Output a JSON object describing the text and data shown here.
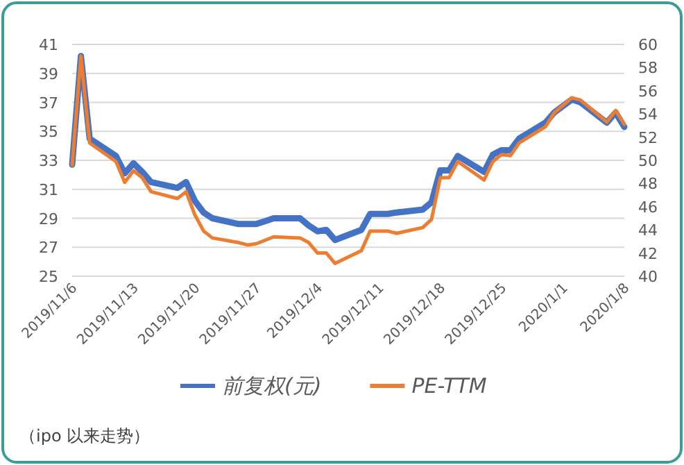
{
  "chart_data": {
    "type": "line",
    "x": [
      "2019-11-06",
      "2019-11-07",
      "2019-11-08",
      "2019-11-11",
      "2019-11-12",
      "2019-11-13",
      "2019-11-14",
      "2019-11-15",
      "2019-11-18",
      "2019-11-19",
      "2019-11-20",
      "2019-11-21",
      "2019-11-22",
      "2019-11-25",
      "2019-11-26",
      "2019-11-27",
      "2019-11-28",
      "2019-11-29",
      "2019-12-02",
      "2019-12-03",
      "2019-12-04",
      "2019-12-05",
      "2019-12-06",
      "2019-12-09",
      "2019-12-10",
      "2019-12-11",
      "2019-12-12",
      "2019-12-13",
      "2019-12-16",
      "2019-12-17",
      "2019-12-18",
      "2019-12-19",
      "2019-12-20",
      "2019-12-23",
      "2019-12-24",
      "2019-12-25",
      "2019-12-26",
      "2019-12-27",
      "2019-12-30",
      "2019-12-31",
      "2020-01-02",
      "2020-01-03",
      "2020-01-06",
      "2020-01-07",
      "2020-01-08"
    ],
    "series": [
      {
        "name": "前复权(元)",
        "color": "#4472c4",
        "values": [
          32.7,
          40.2,
          34.5,
          33.3,
          32.1,
          32.8,
          32.2,
          31.5,
          31.1,
          31.5,
          30.2,
          29.4,
          29.0,
          28.6,
          28.6,
          28.6,
          28.8,
          29.0,
          29.0,
          28.5,
          28.1,
          28.2,
          27.5,
          28.2,
          29.3,
          29.3,
          29.3,
          29.4,
          29.6,
          30.1,
          32.3,
          32.3,
          33.3,
          32.2,
          33.4,
          33.7,
          33.7,
          34.5,
          35.6,
          36.3,
          37.2,
          37.0,
          35.6,
          36.3,
          35.3
        ]
      },
      {
        "name": "PE-TTM",
        "color": "#ed7d31",
        "axis": "y2",
        "values": [
          49.6,
          59.0,
          51.5,
          49.9,
          48.1,
          49.1,
          48.5,
          47.3,
          46.7,
          47.3,
          45.3,
          43.9,
          43.3,
          42.9,
          42.7,
          42.8,
          43.1,
          43.4,
          43.3,
          42.9,
          42.0,
          42.0,
          41.1,
          42.2,
          43.9,
          43.9,
          43.9,
          43.7,
          44.2,
          44.9,
          48.5,
          48.5,
          49.9,
          48.3,
          49.9,
          50.5,
          50.4,
          51.5,
          52.9,
          54.1,
          55.4,
          55.2,
          53.3,
          54.3,
          53.1
        ]
      }
    ],
    "xlim": [
      "2019-11-06",
      "2020-01-08"
    ],
    "xticks": [
      {
        "value": "2019-11-06",
        "label": "2019/11/6"
      },
      {
        "value": "2019-11-13",
        "label": "2019/11/13"
      },
      {
        "value": "2019-11-20",
        "label": "2019/11/20"
      },
      {
        "value": "2019-11-27",
        "label": "2019/11/27"
      },
      {
        "value": "2019-12-04",
        "label": "2019/12/4"
      },
      {
        "value": "2019-12-11",
        "label": "2019/12/11"
      },
      {
        "value": "2019-12-18",
        "label": "2019/12/18"
      },
      {
        "value": "2019-12-25",
        "label": "2019/12/25"
      },
      {
        "value": "2020-01-01",
        "label": "2020/1/1"
      },
      {
        "value": "2020-01-08",
        "label": "2020/1/8"
      }
    ],
    "ylim": [
      25,
      41
    ],
    "yticks": [
      25,
      27,
      29,
      31,
      33,
      35,
      37,
      39,
      41
    ],
    "y2lim": [
      40,
      60
    ],
    "y2ticks": [
      40,
      42,
      44,
      46,
      48,
      50,
      52,
      54,
      56,
      58,
      60
    ],
    "grid": "y",
    "legend": "bottom",
    "annotations": [
      "（ipo 以来走势）"
    ]
  }
}
